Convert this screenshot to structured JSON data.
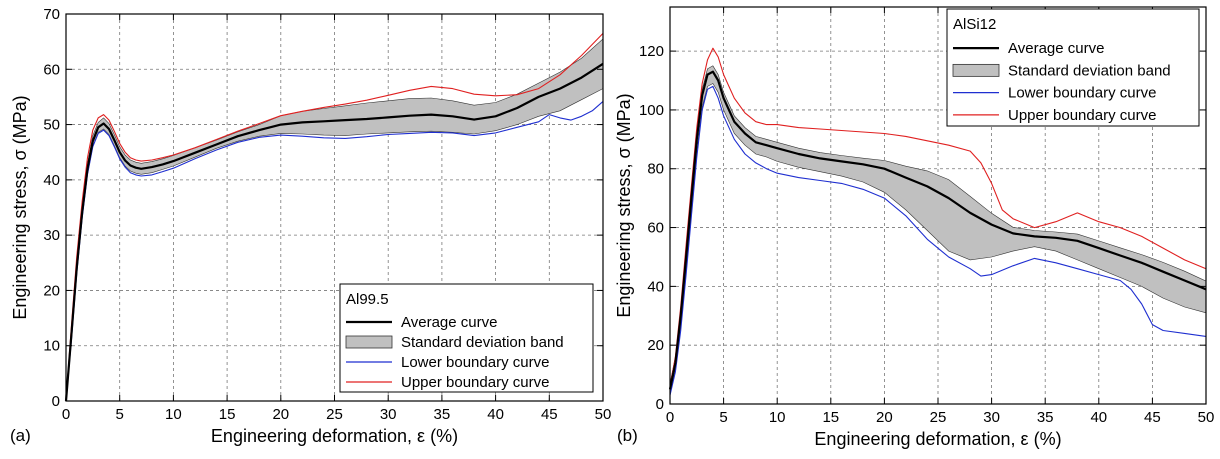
{
  "chart_data": [
    {
      "type": "line",
      "panel_label": "(a)",
      "xlabel": "Engineering deformation, ε (%)",
      "ylabel": "Engineering stress, σ (MPa)",
      "xlim": [
        0,
        50
      ],
      "ylim": [
        0,
        70
      ],
      "xticks": [
        0,
        5,
        10,
        15,
        20,
        25,
        30,
        35,
        40,
        45,
        50
      ],
      "yticks": [
        0,
        10,
        20,
        30,
        40,
        50,
        60,
        70
      ],
      "grid": true,
      "legend_title": "Al99.5",
      "legend_position": "bottom-right",
      "series": [
        {
          "name": "Average curve",
          "color": "#000000",
          "x": [
            0,
            0.5,
            1,
            1.5,
            2,
            2.5,
            3,
            3.5,
            4,
            4.5,
            5,
            5.5,
            6,
            6.5,
            7,
            8,
            9,
            10,
            12,
            14,
            16,
            18,
            20,
            22,
            24,
            26,
            28,
            30,
            32,
            34,
            36,
            38,
            40,
            42,
            44,
            46,
            48,
            50
          ],
          "y": [
            0,
            12,
            24,
            34,
            42,
            47,
            49.5,
            50.2,
            49.2,
            47.2,
            45,
            43.5,
            42.6,
            42.2,
            42,
            42.3,
            42.8,
            43.4,
            44.9,
            46.4,
            47.9,
            49,
            50,
            50.4,
            50.6,
            50.8,
            51,
            51.3,
            51.6,
            51.8,
            51.5,
            50.9,
            51.5,
            53,
            55,
            56.5,
            58.5,
            61
          ]
        },
        {
          "name": "Standard deviation band",
          "color": "#c0c0c0",
          "x": [
            0,
            0.5,
            1,
            1.5,
            2,
            2.5,
            3,
            3.5,
            4,
            4.5,
            5,
            5.5,
            6,
            6.5,
            7,
            8,
            9,
            10,
            12,
            14,
            16,
            18,
            20,
            22,
            24,
            26,
            28,
            30,
            32,
            34,
            36,
            38,
            40,
            42,
            44,
            46,
            48,
            50
          ],
          "y_low": [
            0,
            11,
            23,
            33,
            41,
            46,
            48.6,
            49.2,
            48.2,
            46.2,
            44,
            42.5,
            41.6,
            41.2,
            41,
            41.3,
            41.9,
            42.5,
            44.1,
            45.7,
            47,
            47.9,
            48.4,
            48.3,
            48.1,
            48,
            48.3,
            48.5,
            48.7,
            48.8,
            48.6,
            48.3,
            48.9,
            50,
            51.5,
            52.5,
            54.5,
            56.5
          ],
          "y_high": [
            0,
            13,
            25,
            35,
            43,
            48,
            50.4,
            51.2,
            50.2,
            48.2,
            46,
            44.5,
            43.6,
            43.2,
            43,
            43.3,
            43.8,
            44.4,
            45.8,
            47.2,
            48.7,
            50,
            51.6,
            52.4,
            52.9,
            53.4,
            53.9,
            54.3,
            54.7,
            54.8,
            54.3,
            53.5,
            54,
            55.5,
            57.5,
            59.5,
            62,
            65.5
          ]
        },
        {
          "name": "Lower boundary curve",
          "color": "#1f2fd0",
          "x": [
            0,
            0.5,
            1,
            1.5,
            2,
            2.5,
            3,
            3.5,
            4,
            4.5,
            5,
            5.5,
            6,
            6.5,
            7,
            8,
            9,
            10,
            12,
            14,
            16,
            18,
            20,
            22,
            24,
            26,
            28,
            30,
            32,
            34,
            36,
            38,
            40,
            42,
            44,
            45,
            46,
            47,
            48,
            49,
            50
          ],
          "y": [
            0,
            11,
            23,
            33,
            41,
            46,
            48.4,
            49,
            48,
            46,
            43.8,
            42.3,
            41.3,
            40.9,
            40.7,
            40.9,
            41.5,
            42.1,
            43.8,
            45.4,
            46.8,
            47.7,
            48.1,
            47.9,
            47.6,
            47.5,
            47.8,
            48.2,
            48.4,
            48.6,
            48.5,
            48,
            48.5,
            49.5,
            50.5,
            51.8,
            51.2,
            50.8,
            51.5,
            52.5,
            54.2
          ]
        },
        {
          "name": "Upper boundary curve",
          "color": "#e02020",
          "x": [
            0,
            0.5,
            1,
            1.5,
            2,
            2.5,
            3,
            3.5,
            4,
            4.5,
            5,
            5.5,
            6,
            6.5,
            7,
            8,
            9,
            10,
            12,
            14,
            16,
            18,
            20,
            22,
            24,
            26,
            28,
            30,
            32,
            34,
            36,
            38,
            40,
            42,
            44,
            46,
            48,
            50
          ],
          "y": [
            0,
            13.5,
            26,
            36,
            44,
            49,
            51.2,
            51.8,
            50.8,
            48.8,
            46.6,
            45,
            44,
            43.6,
            43.4,
            43.6,
            44,
            44.5,
            45.8,
            47.3,
            48.8,
            50.2,
            51.6,
            52.4,
            53.1,
            53.7,
            54.4,
            55.3,
            56.2,
            56.9,
            56.5,
            55.5,
            55.2,
            55.4,
            56.5,
            59,
            62.5,
            66.5
          ]
        }
      ]
    },
    {
      "type": "line",
      "panel_label": "(b)",
      "xlabel": "Engineering deformation, ε (%)",
      "ylabel": "Engineering stress, σ (MPa)",
      "xlim": [
        0,
        50
      ],
      "ylim": [
        0,
        135
      ],
      "xticks": [
        0,
        5,
        10,
        15,
        20,
        25,
        30,
        35,
        40,
        45,
        50
      ],
      "yticks": [
        0,
        20,
        40,
        60,
        80,
        100,
        120
      ],
      "grid": true,
      "legend_title": "AlSi12",
      "legend_position": "top-right",
      "series": [
        {
          "name": "Average curve",
          "color": "#000000",
          "x": [
            0,
            0.5,
            1,
            1.5,
            2,
            2.5,
            3,
            3.5,
            4,
            4.5,
            5,
            6,
            7,
            8,
            9,
            10,
            12,
            14,
            16,
            18,
            20,
            22,
            24,
            26,
            28,
            30,
            32,
            34,
            36,
            38,
            40,
            42,
            44,
            46,
            48,
            50
          ],
          "y": [
            5,
            14,
            30,
            50,
            70,
            90,
            105,
            112,
            113,
            110,
            104,
            96,
            92,
            89,
            88,
            87,
            85,
            83.5,
            82.5,
            81.5,
            80,
            77,
            74,
            70,
            65,
            61,
            58,
            57,
            56.5,
            55.5,
            53,
            50.5,
            48,
            45,
            42,
            39
          ]
        },
        {
          "name": "Standard deviation band",
          "color": "#c0c0c0",
          "x": [
            0,
            0.5,
            1,
            1.5,
            2,
            2.5,
            3,
            3.5,
            4,
            4.5,
            5,
            6,
            7,
            8,
            9,
            10,
            12,
            14,
            16,
            18,
            20,
            22,
            24,
            26,
            28,
            30,
            32,
            34,
            36,
            38,
            40,
            42,
            44,
            46,
            48,
            50
          ],
          "y_low": [
            4,
            12,
            27,
            46,
            66,
            86,
            101,
            108,
            109,
            106,
            100,
            92,
            88,
            85,
            84,
            82.5,
            80.5,
            79,
            77.5,
            75.5,
            72,
            66,
            59,
            52,
            49,
            50,
            52,
            53.5,
            52,
            49,
            46,
            43,
            40,
            36,
            33,
            31
          ]
        },
        {
          "name": "Lower boundary curve",
          "color": "#1f2fd0",
          "x": [
            0,
            0.5,
            1,
            1.5,
            2,
            2.5,
            3,
            3.5,
            4,
            4.5,
            5,
            6,
            7,
            8,
            9,
            10,
            12,
            14,
            16,
            18,
            20,
            22,
            24,
            26,
            28,
            29,
            30,
            32,
            34,
            36,
            38,
            40,
            42,
            43,
            44,
            45,
            46,
            48,
            50
          ],
          "y": [
            3,
            11,
            25,
            44,
            64,
            84,
            100,
            107,
            108,
            104,
            98,
            90,
            85,
            82,
            80,
            78.5,
            77,
            76,
            75,
            73,
            70,
            64,
            56,
            50,
            46,
            43.5,
            44,
            47,
            49.5,
            48,
            46,
            44,
            42,
            39,
            34,
            27,
            25,
            24,
            23
          ]
        },
        {
          "name": "Upper boundary curve",
          "color": "#e02020",
          "x": [
            0,
            0.5,
            1,
            1.5,
            2,
            2.5,
            3,
            3.5,
            4,
            4.5,
            5,
            6,
            7,
            8,
            9,
            10,
            12,
            14,
            16,
            18,
            20,
            22,
            24,
            26,
            28,
            29,
            30,
            31,
            32,
            34,
            36,
            38,
            40,
            42,
            44,
            46,
            48,
            50
          ],
          "y": [
            6,
            16,
            33,
            54,
            74,
            94,
            109,
            117,
            121,
            118,
            112,
            104,
            99,
            96,
            95,
            95,
            94,
            93.5,
            93,
            92.5,
            92,
            91,
            89.5,
            88,
            86,
            82,
            75,
            66,
            63,
            60,
            62,
            65,
            62,
            60,
            57,
            53,
            49,
            46
          ]
        }
      ]
    }
  ]
}
